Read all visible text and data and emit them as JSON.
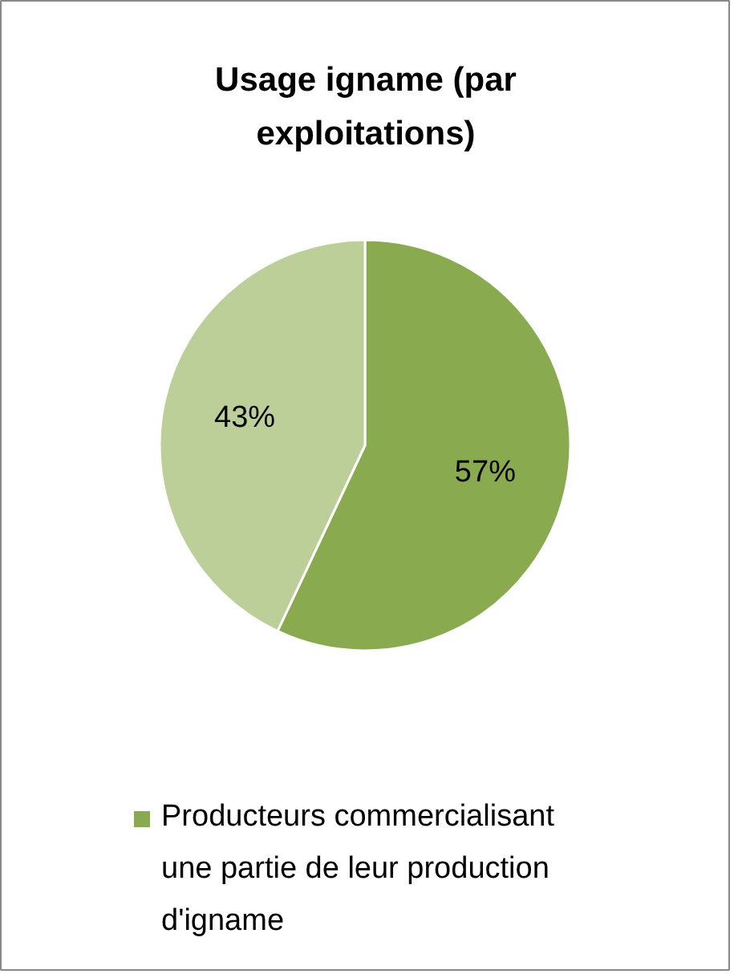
{
  "chart_data": {
    "type": "pie",
    "title": "Usage igname (par exploitations)",
    "categories": [
      "Producteurs commercialisant une partie de leur production d'igname",
      null
    ],
    "values": [
      57,
      43
    ],
    "colors": [
      "#8aaa50",
      "#bccf98"
    ],
    "value_labels": [
      "57%",
      "43%"
    ],
    "legend": "bottom"
  }
}
